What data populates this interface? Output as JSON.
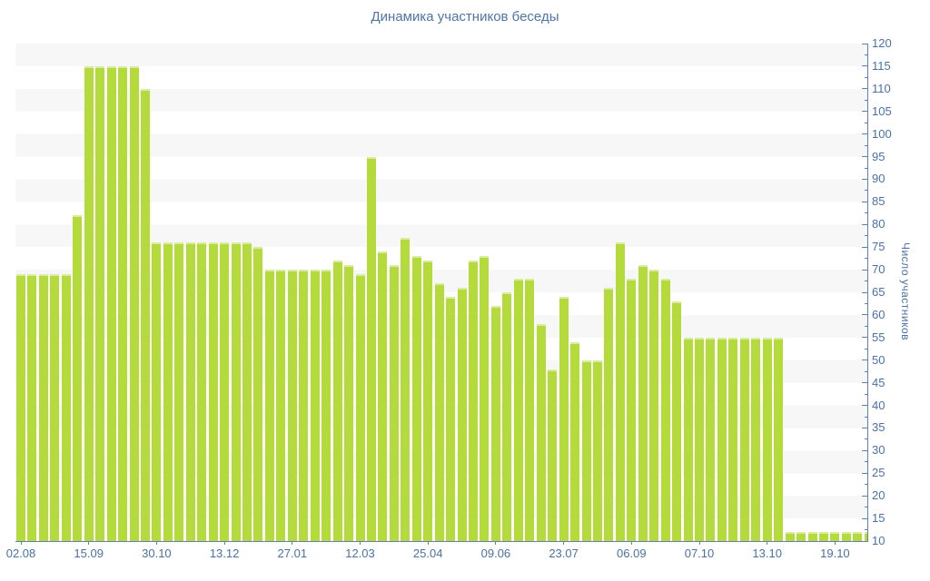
{
  "chart_data": {
    "type": "bar",
    "title": "Динамика участников беседы",
    "ylabel": "Число участников",
    "xlabel": "",
    "ylim": [
      10,
      120
    ],
    "ytick_step": 5,
    "ytick_minor_step": 2.5,
    "grid": "alternating-horizontal-bands",
    "legend": "none",
    "values": [
      69,
      69,
      69,
      69,
      69,
      82,
      115,
      115,
      115,
      115,
      115,
      110,
      76,
      76,
      76,
      76,
      76,
      76,
      76,
      76,
      76,
      75,
      70,
      70,
      70,
      70,
      70,
      70,
      72,
      71,
      69,
      95,
      74,
      71,
      77,
      73,
      72,
      67,
      64,
      66,
      72,
      73,
      62,
      65,
      68,
      68,
      58,
      48,
      64,
      54,
      50,
      50,
      66,
      76,
      68,
      71,
      70,
      68,
      63,
      55,
      55,
      55,
      55,
      55,
      55,
      55,
      55,
      55,
      12,
      12,
      12,
      12,
      12,
      12,
      12,
      12
    ],
    "x_tick_labels": [
      "02.08",
      "15.09",
      "30.10",
      "13.12",
      "27.01",
      "12.03",
      "25.04",
      "09.06",
      "23.07",
      "06.09",
      "07.10",
      "13.10",
      "19.10"
    ],
    "x_tick_bar_indices": [
      0,
      6,
      12,
      18,
      24,
      30,
      36,
      42,
      48,
      54,
      60,
      66,
      72
    ]
  },
  "colors": {
    "bar": "#b4da3c",
    "bar_top_edge": "#d9eda0",
    "axis": "#6080b5",
    "text": "#4a71a5",
    "title_text": "#4e74a8",
    "band": "#f7f7f8",
    "background": "#ffffff"
  }
}
